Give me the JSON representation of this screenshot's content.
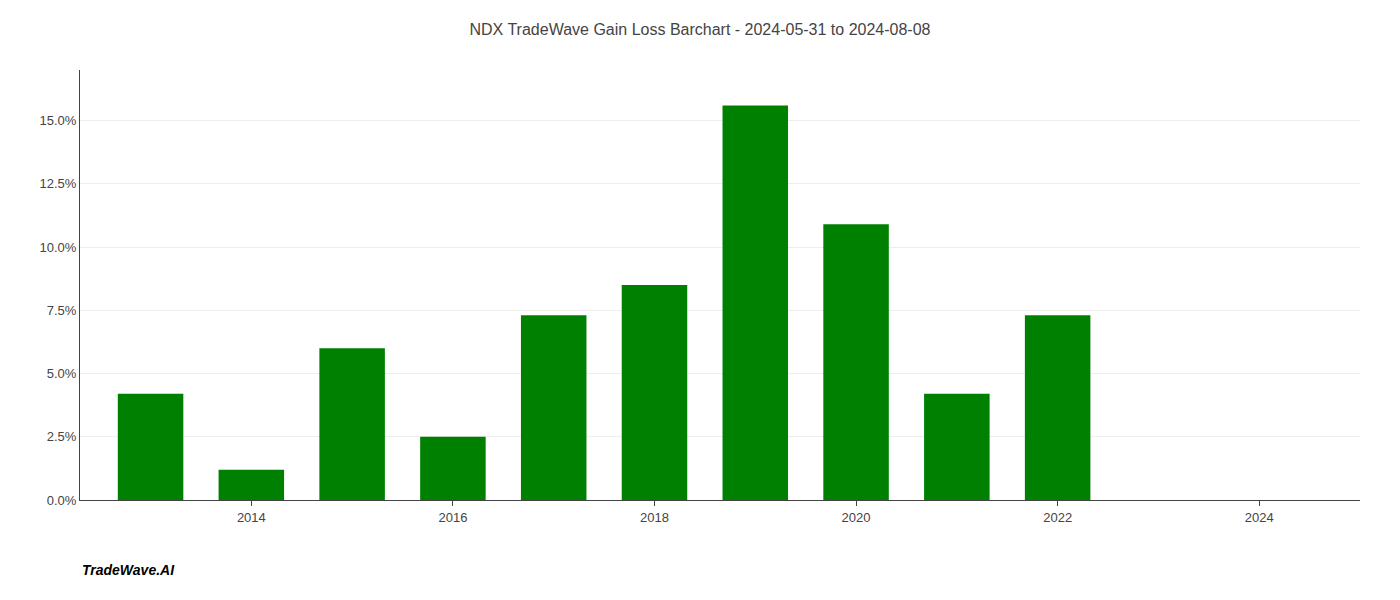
{
  "chart_data": {
    "type": "bar",
    "title": "NDX TradeWave Gain Loss Barchart - 2024-05-31 to 2024-08-08",
    "annotations": [
      "TradeWave.AI"
    ],
    "x": [
      2013,
      2014,
      2015,
      2016,
      2017,
      2018,
      2019,
      2020,
      2021,
      2022,
      2023
    ],
    "values": [
      0.042,
      0.012,
      0.06,
      0.025,
      0.073,
      0.085,
      0.156,
      0.109,
      0.042,
      0.073,
      0.0
    ],
    "color": "#008000",
    "xlim": [
      2012.3,
      2025.0
    ],
    "xticks": [
      2014,
      2016,
      2018,
      2020,
      2022,
      2024
    ],
    "ylim": [
      0,
      0.17
    ],
    "yticks": [
      {
        "value": 0.0,
        "label": "0.0%"
      },
      {
        "value": 0.025,
        "label": "2.5%"
      },
      {
        "value": 0.05,
        "label": "5.0%"
      },
      {
        "value": 0.075,
        "label": "7.5%"
      },
      {
        "value": 0.1,
        "label": "10.0%"
      },
      {
        "value": 0.125,
        "label": "12.5%"
      },
      {
        "value": 0.15,
        "label": "15.0%"
      }
    ],
    "grid": "y"
  }
}
